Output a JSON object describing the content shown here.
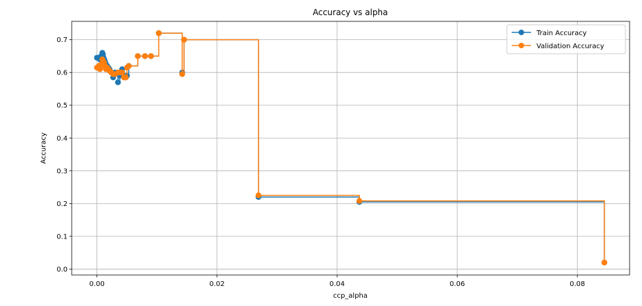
{
  "chart_data": {
    "type": "line",
    "title": "Accuracy vs alpha",
    "xlabel": "ccp_alpha",
    "ylabel": "Accuracy",
    "xlim": [
      -0.0042,
      0.0887
    ],
    "ylim": [
      -0.018,
      0.756
    ],
    "xticks": [
      0.0,
      0.02,
      0.04,
      0.06,
      0.08
    ],
    "xtick_labels": [
      "0.00",
      "0.02",
      "0.04",
      "0.06",
      "0.08"
    ],
    "yticks": [
      0.0,
      0.1,
      0.2,
      0.3,
      0.4,
      0.5,
      0.6,
      0.7
    ],
    "ytick_labels": [
      "0.0",
      "0.1",
      "0.2",
      "0.3",
      "0.4",
      "0.5",
      "0.6",
      "0.7"
    ],
    "grid": true,
    "legend_position": "top-right",
    "drawstyle": "steps-post",
    "marker": "circle",
    "series": [
      {
        "name": "Train Accuracy",
        "color": "#1f77b4",
        "x": [
          0.0,
          0.0003,
          0.0005,
          0.0007,
          0.0009,
          0.001,
          0.0011,
          0.0012,
          0.0013,
          0.0014,
          0.0015,
          0.0017,
          0.0019,
          0.0021,
          0.0024,
          0.0027,
          0.003,
          0.0035,
          0.0038,
          0.0042,
          0.0045,
          0.0048,
          0.005,
          0.0053,
          0.0068,
          0.008,
          0.009,
          0.0103,
          0.0142,
          0.0145,
          0.0269,
          0.0437,
          0.0845
        ],
        "y": [
          0.645,
          0.645,
          0.64,
          0.65,
          0.66,
          0.655,
          0.645,
          0.64,
          0.635,
          0.63,
          0.625,
          0.62,
          0.615,
          0.61,
          0.6,
          0.585,
          0.6,
          0.57,
          0.59,
          0.61,
          0.59,
          0.585,
          0.59,
          0.62,
          0.65,
          0.65,
          0.65,
          0.72,
          0.6,
          0.7,
          0.22,
          0.205,
          0.02
        ]
      },
      {
        "name": "Validation Accuracy",
        "color": "#ff7f0e",
        "x": [
          0.0,
          0.0003,
          0.0005,
          0.0007,
          0.0009,
          0.001,
          0.0011,
          0.0012,
          0.0013,
          0.0014,
          0.0015,
          0.0017,
          0.0019,
          0.0021,
          0.0024,
          0.0027,
          0.003,
          0.0035,
          0.0038,
          0.0042,
          0.0045,
          0.0048,
          0.005,
          0.0053,
          0.0068,
          0.008,
          0.009,
          0.0103,
          0.0142,
          0.0145,
          0.0269,
          0.0437,
          0.0845
        ],
        "y": [
          0.615,
          0.62,
          0.61,
          0.625,
          0.64,
          0.635,
          0.625,
          0.63,
          0.62,
          0.615,
          0.61,
          0.615,
          0.61,
          0.605,
          0.6,
          0.595,
          0.595,
          0.6,
          0.6,
          0.6,
          0.585,
          0.585,
          0.615,
          0.62,
          0.65,
          0.65,
          0.65,
          0.72,
          0.595,
          0.7,
          0.225,
          0.208,
          0.02
        ]
      }
    ]
  }
}
